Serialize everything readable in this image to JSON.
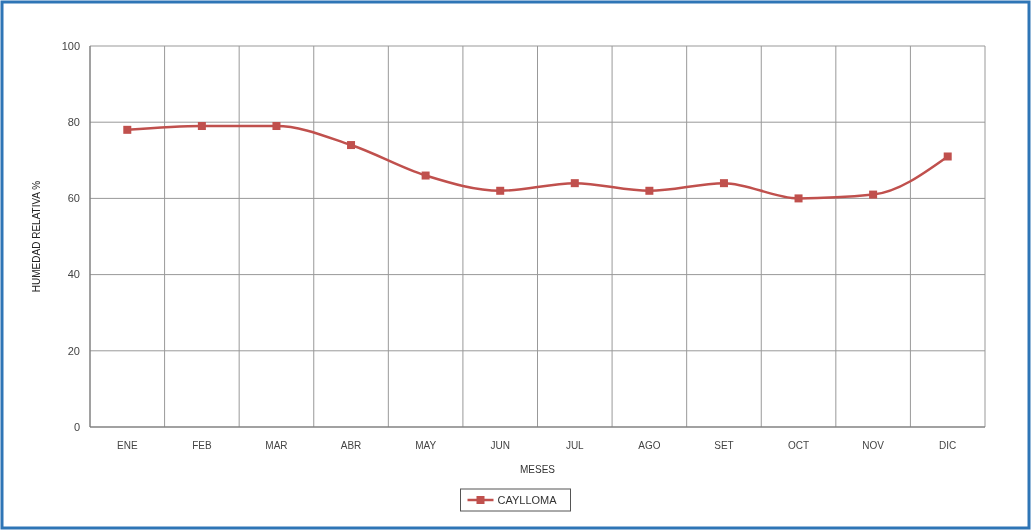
{
  "chart_data": {
    "type": "line",
    "xlabel": "MESES",
    "ylabel": "HUMEDAD RELATIVA %",
    "categories": [
      "ENE",
      "FEB",
      "MAR",
      "ABR",
      "MAY",
      "JUN",
      "JUL",
      "AGO",
      "SET",
      "OCT",
      "NOV",
      "DIC"
    ],
    "series": [
      {
        "name": "CAYLLOMA",
        "color": "#c0504d",
        "values": [
          78,
          79,
          79,
          74,
          66,
          62,
          64,
          62,
          64,
          60,
          61,
          71
        ]
      }
    ],
    "ylim": [
      0,
      100
    ],
    "yticks": [
      0,
      20,
      40,
      60,
      80,
      100
    ],
    "grid": true,
    "legend": "bottom",
    "marker": "square",
    "line_style": "solid"
  }
}
